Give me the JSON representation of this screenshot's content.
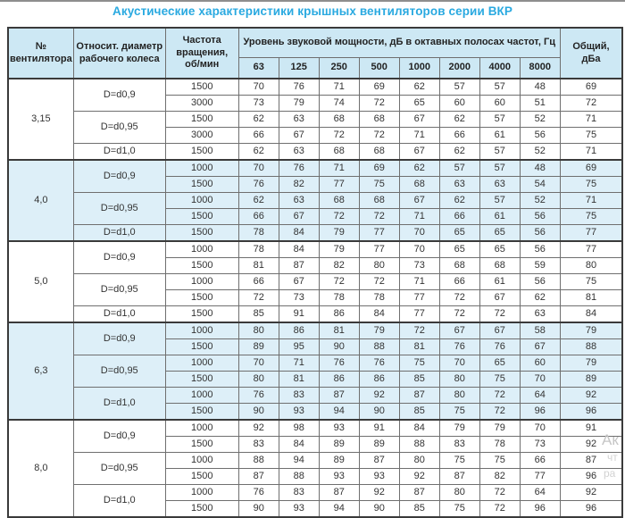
{
  "title": "Акустические характеристики крышных вентиляторов серии ВКР",
  "colors": {
    "accent": "#29a9e0",
    "header_bg": "#cde8f4",
    "shaded_row_bg": "#ddeff8",
    "border_dark": "#3a3a3a",
    "border_inner": "#6f6f6f",
    "text": "#333333"
  },
  "table": {
    "headers": {
      "fan_no": "№\nвентилятора",
      "diameter": "Относит. диаметр\nрабочего колеса",
      "speed": "Частота\nвращения,\nоб/мин",
      "spl_group": "Уровень звуковой мощности, дБ в октавных полосах частот, Гц",
      "freqs": [
        "63",
        "125",
        "250",
        "500",
        "1000",
        "2000",
        "4000",
        "8000"
      ],
      "total": "Общий,\nдБа"
    },
    "groups": [
      {
        "fan": "3,15",
        "shaded": false,
        "diameters": [
          {
            "label": "D=d0,9",
            "rows": [
              {
                "speed": "1500",
                "values": [
                  70,
                  76,
                  71,
                  69,
                  62,
                  57,
                  57,
                  48
                ],
                "total": 69
              },
              {
                "speed": "3000",
                "values": [
                  73,
                  79,
                  74,
                  72,
                  65,
                  60,
                  60,
                  51
                ],
                "total": 72
              }
            ]
          },
          {
            "label": "D=d0,95",
            "rows": [
              {
                "speed": "1500",
                "values": [
                  62,
                  63,
                  68,
                  68,
                  67,
                  62,
                  57,
                  52
                ],
                "total": 71
              },
              {
                "speed": "3000",
                "values": [
                  66,
                  67,
                  72,
                  72,
                  71,
                  66,
                  61,
                  56
                ],
                "total": 75
              }
            ]
          },
          {
            "label": "D=d1,0",
            "rows": [
              {
                "speed": "1500",
                "values": [
                  62,
                  63,
                  68,
                  68,
                  67,
                  62,
                  57,
                  52
                ],
                "total": 71
              }
            ]
          }
        ]
      },
      {
        "fan": "4,0",
        "shaded": true,
        "diameters": [
          {
            "label": "D=d0,9",
            "rows": [
              {
                "speed": "1000",
                "values": [
                  70,
                  76,
                  71,
                  69,
                  62,
                  57,
                  57,
                  48
                ],
                "total": 69
              },
              {
                "speed": "1500",
                "values": [
                  76,
                  82,
                  77,
                  75,
                  68,
                  63,
                  63,
                  54
                ],
                "total": 75
              }
            ]
          },
          {
            "label": "D=d0,95",
            "rows": [
              {
                "speed": "1000",
                "values": [
                  62,
                  63,
                  68,
                  68,
                  67,
                  62,
                  57,
                  52
                ],
                "total": 71
              },
              {
                "speed": "1500",
                "values": [
                  66,
                  67,
                  72,
                  72,
                  71,
                  66,
                  61,
                  56
                ],
                "total": 75
              }
            ]
          },
          {
            "label": "D=d1,0",
            "rows": [
              {
                "speed": "1500",
                "values": [
                  78,
                  84,
                  79,
                  77,
                  70,
                  65,
                  65,
                  56
                ],
                "total": 77
              }
            ]
          }
        ]
      },
      {
        "fan": "5,0",
        "shaded": false,
        "diameters": [
          {
            "label": "D=d0,9",
            "rows": [
              {
                "speed": "1000",
                "values": [
                  78,
                  84,
                  79,
                  77,
                  70,
                  65,
                  65,
                  56
                ],
                "total": 77
              },
              {
                "speed": "1500",
                "values": [
                  81,
                  87,
                  82,
                  80,
                  73,
                  68,
                  68,
                  59
                ],
                "total": 80
              }
            ]
          },
          {
            "label": "D=d0,95",
            "rows": [
              {
                "speed": "1000",
                "values": [
                  66,
                  67,
                  72,
                  72,
                  71,
                  66,
                  61,
                  56
                ],
                "total": 75
              },
              {
                "speed": "1500",
                "values": [
                  72,
                  73,
                  78,
                  78,
                  77,
                  72,
                  67,
                  62
                ],
                "total": 81
              }
            ]
          },
          {
            "label": "D=d1,0",
            "rows": [
              {
                "speed": "1500",
                "values": [
                  85,
                  91,
                  86,
                  84,
                  77,
                  72,
                  72,
                  63
                ],
                "total": 84
              }
            ]
          }
        ]
      },
      {
        "fan": "6,3",
        "shaded": true,
        "diameters": [
          {
            "label": "D=d0,9",
            "rows": [
              {
                "speed": "1000",
                "values": [
                  80,
                  86,
                  81,
                  79,
                  72,
                  67,
                  67,
                  58
                ],
                "total": 79
              },
              {
                "speed": "1500",
                "values": [
                  89,
                  95,
                  90,
                  88,
                  81,
                  76,
                  76,
                  67
                ],
                "total": 88
              }
            ]
          },
          {
            "label": "D=d0,95",
            "rows": [
              {
                "speed": "1000",
                "values": [
                  70,
                  71,
                  76,
                  76,
                  75,
                  70,
                  65,
                  60
                ],
                "total": 79
              },
              {
                "speed": "1500",
                "values": [
                  80,
                  81,
                  86,
                  86,
                  85,
                  80,
                  75,
                  70
                ],
                "total": 89
              }
            ]
          },
          {
            "label": "D=d1,0",
            "rows": [
              {
                "speed": "1000",
                "values": [
                  76,
                  83,
                  87,
                  92,
                  87,
                  80,
                  72,
                  64
                ],
                "total": 92
              },
              {
                "speed": "1500",
                "values": [
                  90,
                  93,
                  94,
                  90,
                  85,
                  75,
                  72,
                  96
                ],
                "total": 96
              }
            ]
          }
        ]
      },
      {
        "fan": "8,0",
        "shaded": false,
        "diameters": [
          {
            "label": "D=d0,9",
            "rows": [
              {
                "speed": "1000",
                "values": [
                  92,
                  98,
                  93,
                  91,
                  84,
                  79,
                  79,
                  70
                ],
                "total": 91
              },
              {
                "speed": "1500",
                "values": [
                  83,
                  84,
                  89,
                  89,
                  88,
                  83,
                  78,
                  73
                ],
                "total": 92
              }
            ]
          },
          {
            "label": "D=d0,95",
            "rows": [
              {
                "speed": "1000",
                "values": [
                  88,
                  94,
                  89,
                  87,
                  80,
                  75,
                  75,
                  66
                ],
                "total": 87
              },
              {
                "speed": "1500",
                "values": [
                  87,
                  88,
                  93,
                  93,
                  92,
                  87,
                  82,
                  77
                ],
                "total": 96
              }
            ]
          },
          {
            "label": "D=d1,0",
            "rows": [
              {
                "speed": "1000",
                "values": [
                  76,
                  83,
                  87,
                  92,
                  87,
                  80,
                  72,
                  64
                ],
                "total": 92
              },
              {
                "speed": "1500",
                "values": [
                  90,
                  93,
                  94,
                  90,
                  85,
                  75,
                  72,
                  96
                ],
                "total": 96
              }
            ]
          }
        ]
      }
    ]
  },
  "watermark": {
    "lines": [
      "Ак",
      "чт",
      "ра"
    ]
  }
}
